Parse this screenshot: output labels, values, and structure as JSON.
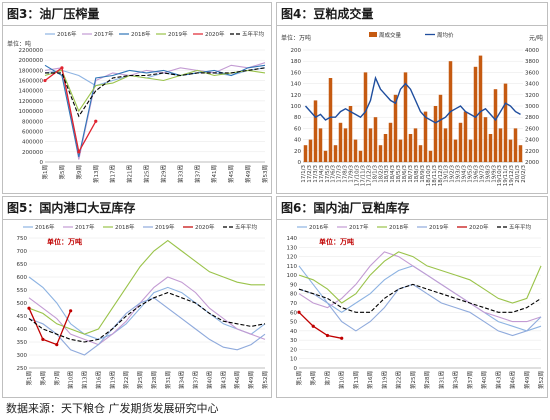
{
  "panels": [
    {
      "title": "图3：油厂压榨量"
    },
    {
      "title": "图4：豆粕成交量"
    },
    {
      "title": "图5：国内港口大豆库存"
    },
    {
      "title": "图6：国内油厂豆粕库存"
    }
  ],
  "source": "数据来源：天下粮仓  广发期货发展研究中心",
  "chart_data": [
    {
      "type": "line",
      "title": "油厂压榨量",
      "unit": "单位：吨",
      "ylim": [
        0,
        2200000
      ],
      "yticks": [
        "0",
        "200000",
        "400000",
        "600000",
        "800000",
        "1000000",
        "1200000",
        "1400000",
        "1600000",
        "1800000",
        "2000000",
        "2200000"
      ],
      "xticks": [
        "第1周",
        "第5周",
        "第9周",
        "第13周",
        "第17周",
        "第21周",
        "第25周",
        "第29周",
        "第33周",
        "第37周",
        "第41周",
        "第45周",
        "第49周",
        "第53周"
      ],
      "series": [
        {
          "name": "2016年",
          "color": "#8db3e2",
          "dash": "",
          "values": [
            1750000,
            1800000,
            1700000,
            1500000,
            1600000,
            1700000,
            1650000,
            1750000,
            1700000,
            1800000,
            1750000,
            1700000,
            1800000,
            1850000
          ]
        },
        {
          "name": "2017年",
          "color": "#c39bd3",
          "dash": "",
          "values": [
            1800000,
            1850000,
            50000,
            1600000,
            1750000,
            1700000,
            1800000,
            1750000,
            1850000,
            1800000,
            1750000,
            1900000,
            1850000,
            1950000
          ]
        },
        {
          "name": "2018年",
          "color": "#2e75b6",
          "dash": "",
          "values": [
            1900000,
            1700000,
            100000,
            1650000,
            1700000,
            1800000,
            1750000,
            1800000,
            1700000,
            1750000,
            1800000,
            1700000,
            1850000,
            1900000
          ]
        },
        {
          "name": "2019年",
          "color": "#9ac34a",
          "dash": "",
          "values": [
            1700000,
            1800000,
            1000000,
            1500000,
            1550000,
            1700000,
            1650000,
            1600000,
            1700000,
            1800000,
            1700000,
            1750000,
            1800000,
            1750000
          ]
        },
        {
          "name": "2020年",
          "color": "#e0232f",
          "dash": "",
          "values": [
            1600000,
            1850000,
            200000,
            800000
          ]
        },
        {
          "name": "五年平均",
          "color": "#000000",
          "dash": "4,2",
          "values": [
            1750000,
            1750000,
            900000,
            1400000,
            1650000,
            1700000,
            1700000,
            1750000,
            1700000,
            1750000,
            1750000,
            1750000,
            1800000,
            1850000
          ]
        }
      ]
    },
    {
      "type": "bar+line",
      "title": "豆粕成交量",
      "unit_left": "单位：万吨",
      "unit_right": "元/吨",
      "ylim_left": [
        0,
        200
      ],
      "ylim_right": [
        2000,
        4000
      ],
      "yticks_left": [
        "0",
        "20",
        "40",
        "60",
        "80",
        "100",
        "120",
        "140",
        "160",
        "180",
        "200"
      ],
      "yticks_right": [
        "2000",
        "2200",
        "2400",
        "2600",
        "2800",
        "3000",
        "3200",
        "3400",
        "3600",
        "3800",
        "4000"
      ],
      "xticks": [
        "17/1/3",
        "17/2/3",
        "17/3/3",
        "17/4/3",
        "17/5/3",
        "17/6/3",
        "17/7/3",
        "17/8/3",
        "17/9/3",
        "17/10/3",
        "17/11/3",
        "17/12/3",
        "18/1/3",
        "18/2/3",
        "18/3/3",
        "18/4/3",
        "18/5/3",
        "18/6/3",
        "18/7/3",
        "18/8/3",
        "18/9/3",
        "18/10/3",
        "18/11/3",
        "18/12/3",
        "19/1/3",
        "19/2/3",
        "19/3/3",
        "19/4/3",
        "19/5/3",
        "19/6/3",
        "19/7/3",
        "19/8/3",
        "19/9/3",
        "19/10/3",
        "19/11/3",
        "19/12/3",
        "20/1/3",
        "20/2/3"
      ],
      "series": [
        {
          "name": "周成交量",
          "color": "#c55a11",
          "values": [
            30,
            40,
            110,
            60,
            20,
            150,
            30,
            70,
            60,
            100,
            40,
            20,
            160,
            60,
            80,
            30,
            50,
            70,
            120,
            40,
            160,
            50,
            60,
            30,
            90,
            20,
            100,
            120,
            60,
            180,
            40,
            70,
            90,
            40,
            170,
            190,
            80,
            50,
            130,
            60,
            140,
            40,
            60,
            30
          ]
        },
        {
          "name": "周均价",
          "color": "#1f4e9e",
          "values": [
            3000,
            2900,
            2800,
            2850,
            2750,
            2800,
            2800,
            2900,
            2950,
            2900,
            2850,
            2800,
            2900,
            3100,
            3500,
            3300,
            3200,
            3100,
            3050,
            3300,
            3400,
            3300,
            3100,
            2900,
            2800,
            2750,
            2700,
            2750,
            2800,
            2900,
            2950,
            3000,
            2900,
            2850,
            2800,
            2900,
            2950,
            2850,
            2750,
            2900,
            3050,
            3000,
            2900,
            2850
          ]
        }
      ]
    },
    {
      "type": "line",
      "title": "国内港口大豆库存",
      "unit": "单位：万吨",
      "ylim": [
        250,
        750
      ],
      "yticks": [
        "250",
        "300",
        "350",
        "400",
        "450",
        "500",
        "550",
        "600",
        "650",
        "700",
        "750"
      ],
      "xticks": [
        "第1周",
        "第4周",
        "第7周",
        "第10周",
        "第13周",
        "第16周",
        "第19周",
        "第22周",
        "第25周",
        "第28周",
        "第31周",
        "第34周",
        "第37周",
        "第40周",
        "第43周",
        "第46周",
        "第49周",
        "第52周"
      ],
      "series": [
        {
          "name": "2016年",
          "color": "#8db3e2",
          "dash": "",
          "values": [
            600,
            560,
            500,
            420,
            380,
            360,
            380,
            420,
            480,
            540,
            560,
            540,
            500,
            460,
            420,
            400,
            380,
            420
          ]
        },
        {
          "name": "2017年",
          "color": "#c39bd3",
          "dash": "",
          "values": [
            520,
            480,
            440,
            380,
            360,
            340,
            380,
            430,
            500,
            560,
            600,
            580,
            540,
            480,
            440,
            400,
            380,
            360
          ]
        },
        {
          "name": "2018年",
          "color": "#9ac34a",
          "dash": "",
          "values": [
            480,
            460,
            420,
            400,
            380,
            400,
            480,
            560,
            640,
            700,
            740,
            700,
            660,
            620,
            600,
            580,
            570,
            570
          ]
        },
        {
          "name": "2019年",
          "color": "#8faadc",
          "dash": "",
          "values": [
            440,
            420,
            380,
            320,
            300,
            340,
            400,
            460,
            500,
            520,
            480,
            440,
            400,
            360,
            330,
            320,
            340,
            380
          ]
        },
        {
          "name": "2020年",
          "color": "#c00000",
          "dash": "",
          "values": [
            480,
            360,
            340,
            470
          ]
        },
        {
          "name": "五年平均",
          "color": "#000000",
          "dash": "4,2",
          "values": [
            440,
            400,
            380,
            360,
            350,
            360,
            400,
            450,
            490,
            520,
            540,
            520,
            500,
            460,
            430,
            420,
            410,
            420
          ]
        }
      ]
    },
    {
      "type": "line",
      "title": "国内油厂豆粕库存",
      "unit": "单位：万吨",
      "ylim": [
        0,
        140
      ],
      "yticks": [
        "0",
        "10",
        "20",
        "30",
        "40",
        "50",
        "60",
        "70",
        "80",
        "90",
        "100",
        "110",
        "120",
        "130",
        "140"
      ],
      "xticks": [
        "第1周",
        "第4周",
        "第7周",
        "第10周",
        "第13周",
        "第16周",
        "第19周",
        "第22周",
        "第25周",
        "第28周",
        "第31周",
        "第34周",
        "第37周",
        "第40周",
        "第43周",
        "第46周",
        "第49周",
        "第52周"
      ],
      "series": [
        {
          "name": "2016年",
          "color": "#8db3e2",
          "dash": "",
          "values": [
            110,
            90,
            70,
            60,
            70,
            80,
            95,
            105,
            110,
            100,
            90,
            80,
            70,
            60,
            50,
            45,
            40,
            45
          ]
        },
        {
          "name": "2017年",
          "color": "#c39bd3",
          "dash": "",
          "values": [
            80,
            70,
            65,
            75,
            90,
            110,
            125,
            120,
            110,
            100,
            90,
            80,
            70,
            60,
            55,
            50,
            50,
            55
          ]
        },
        {
          "name": "2018年",
          "color": "#9ac34a",
          "dash": "",
          "values": [
            100,
            95,
            85,
            70,
            80,
            100,
            115,
            125,
            120,
            110,
            105,
            100,
            95,
            85,
            75,
            70,
            75,
            110
          ]
        },
        {
          "name": "2019年",
          "color": "#8faadc",
          "dash": "",
          "values": [
            85,
            80,
            70,
            50,
            40,
            50,
            65,
            85,
            90,
            80,
            70,
            65,
            60,
            50,
            40,
            35,
            40,
            55
          ]
        },
        {
          "name": "2020年",
          "color": "#c00000",
          "dash": "",
          "values": [
            60,
            45,
            35,
            32
          ]
        },
        {
          "name": "五年平均",
          "color": "#000000",
          "dash": "4,2",
          "values": [
            85,
            80,
            75,
            65,
            60,
            60,
            75,
            85,
            90,
            85,
            80,
            75,
            70,
            65,
            60,
            60,
            65,
            75
          ]
        }
      ]
    }
  ]
}
